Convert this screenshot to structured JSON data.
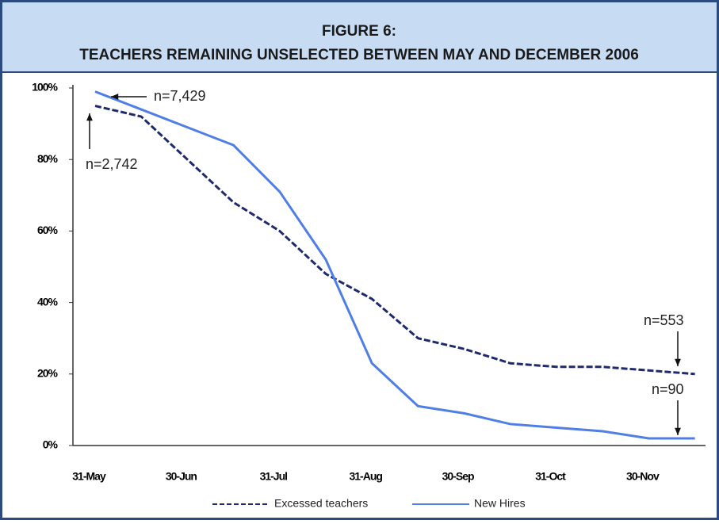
{
  "chart_data": {
    "type": "line",
    "title": "FIGURE 6:",
    "subtitle": "TEACHERS REMAINING UNSELECTED BETWEEN MAY AND DECEMBER 2006",
    "categories": [
      "31-May",
      null,
      "30-Jun",
      null,
      "31-Jul",
      null,
      "31-Aug",
      null,
      "30-Sep",
      null,
      "31-Oct",
      null,
      "30-Nov",
      null
    ],
    "series": [
      {
        "name": "Excessed teachers",
        "color": "#1f2a6e",
        "dash": true,
        "values": [
          95,
          92,
          80,
          68,
          60,
          48,
          41,
          30,
          27,
          23,
          22,
          22,
          21,
          20
        ]
      },
      {
        "name": "New Hires",
        "color": "#4f7fe6",
        "dash": false,
        "values": [
          99,
          94,
          89,
          84,
          71,
          52,
          23,
          11,
          9,
          6,
          5,
          4,
          2,
          2
        ]
      }
    ],
    "ylim": [
      0,
      100
    ],
    "yticks": [
      {
        "value": 0,
        "label": "0%"
      },
      {
        "value": 20,
        "label": "20%"
      },
      {
        "value": 40,
        "label": "40%"
      },
      {
        "value": 60,
        "label": "60%"
      },
      {
        "value": 80,
        "label": "80%"
      },
      {
        "value": 100,
        "label": "100%"
      }
    ],
    "grid": false,
    "legend": "bottom",
    "annotations": [
      "n=7,429",
      "n=2,742",
      "n=553",
      "n=90"
    ]
  }
}
